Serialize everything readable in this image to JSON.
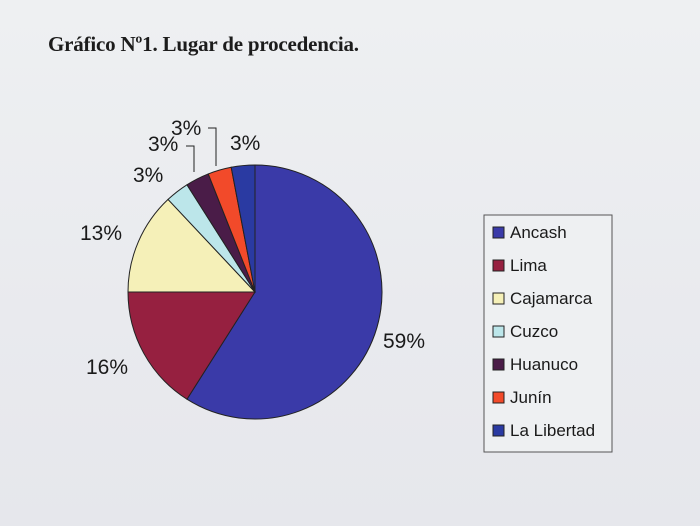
{
  "title": "Gráfico Nº1. Lugar de procedencia.",
  "chart_data": {
    "type": "pie",
    "title": "Gráfico Nº1. Lugar de procedencia.",
    "categories": [
      "Ancash",
      "Lima",
      "Cajamarca",
      "Cuzco",
      "Huanuco",
      "Junín",
      "La Libertad"
    ],
    "values": [
      59,
      16,
      13,
      3,
      3,
      3,
      3
    ],
    "labels": [
      "59%",
      "16%",
      "13%",
      "3%",
      "3%",
      "3%",
      "3%"
    ],
    "colors": [
      "#3a3aa8",
      "#962040",
      "#f5f0b8",
      "#bce6ea",
      "#4a1c48",
      "#f24a2a",
      "#2a3aa2"
    ],
    "legend_position": "right"
  }
}
